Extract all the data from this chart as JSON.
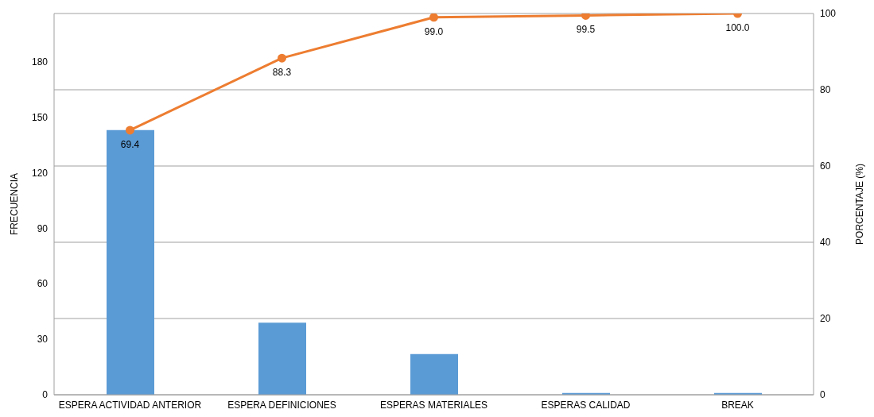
{
  "chart_data": {
    "type": "bar",
    "categories": [
      "ESPERA ACTIVIDAD ANTERIOR",
      "ESPERA DEFINICIONES",
      "ESPERAS MATERIALES",
      "ESPERAS CALIDAD",
      "BREAK"
    ],
    "series": [
      {
        "color": "#5b9bd5",
        "values": [
          143,
          39,
          22,
          1,
          1
        ]
      },
      {
        "type": "line",
        "axis": "y2",
        "color": "#ed7d31",
        "values": [
          69.4,
          88.3,
          99.0,
          99.5,
          100.0
        ],
        "value_labels": [
          "69.4",
          "88.3",
          "99.0",
          "99.5",
          "100.0"
        ],
        "marker": "circle"
      }
    ],
    "ylabel": "FRECUENCIA",
    "y2label": "PORCENTAJE  (%)",
    "ylim": [
      0,
      206
    ],
    "yticks": [
      0,
      30,
      60,
      90,
      120,
      150,
      180
    ],
    "y2lim": [
      0,
      100
    ],
    "y2ticks": [
      0,
      20,
      40,
      60,
      80,
      100
    ],
    "grid": "y",
    "legend": false
  }
}
